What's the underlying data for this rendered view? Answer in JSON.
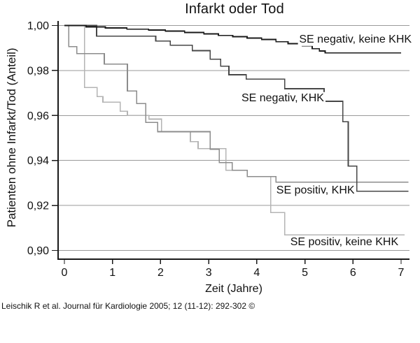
{
  "figure": {
    "title": "Infarkt oder Tod",
    "y_axis": {
      "label": "Patienten ohne Infarkt/Tod (Anteil)"
    },
    "x_axis": {
      "label": "Zeit (Jahre)"
    },
    "citation": "Leischik R et al. Journal für Kardiologie 2005; 12 (11-12): 292-302 ©"
  },
  "colors": {
    "axis": "#1a1a1a",
    "grid": "#9a9a9a",
    "background": "#ffffff"
  },
  "chart_data": {
    "type": "line",
    "subtype": "kaplan-meier-step-curves",
    "title": "Infarkt oder Tod",
    "xlabel": "Zeit (Jahre)",
    "ylabel": "Patienten ohne Infarkt/Tod (Anteil)",
    "xlim": [
      0,
      7.17
    ],
    "ylim": [
      0.9,
      1.002
    ],
    "grid": "horizontal-only",
    "legend_position": "inline-labels-on-plot",
    "x_ticks": [
      0,
      1,
      2,
      3,
      4,
      5,
      6,
      7
    ],
    "y_ticks": [
      {
        "label": "1,00",
        "value": 1.0
      },
      {
        "label": "0,98",
        "value": 0.98
      },
      {
        "label": "0,96",
        "value": 0.96
      },
      {
        "label": "0,94",
        "value": 0.94
      },
      {
        "label": "0,92",
        "value": 0.92
      },
      {
        "label": "0,90",
        "value": 0.9
      }
    ],
    "series": [
      {
        "name": "SE negativ, keine KHK",
        "color": "#1a1a1a",
        "width": 1.8,
        "end_x": 7.0,
        "label_at": [
          6.05,
          0.9936
        ],
        "points": [
          [
            0,
            1.0
          ],
          [
            0.45,
            0.9994
          ],
          [
            0.85,
            0.9989
          ],
          [
            1.3,
            0.9984
          ],
          [
            1.75,
            0.998
          ],
          [
            2.1,
            0.9975
          ],
          [
            2.5,
            0.9969
          ],
          [
            2.9,
            0.9963
          ],
          [
            3.2,
            0.9956
          ],
          [
            3.5,
            0.995
          ],
          [
            3.8,
            0.9944
          ],
          [
            4.1,
            0.9938
          ],
          [
            4.4,
            0.9928
          ],
          [
            4.65,
            0.9919
          ],
          [
            4.95,
            0.9909
          ],
          [
            5.15,
            0.9897
          ],
          [
            5.3,
            0.9887
          ],
          [
            5.42,
            0.9878
          ]
        ]
      },
      {
        "name": "SE negativ, KHK",
        "color": "#474747",
        "width": 1.7,
        "end_x": 7.15,
        "label_at": [
          4.54,
          0.9675
        ],
        "points": [
          [
            0,
            1.0
          ],
          [
            0.67,
            0.9953
          ],
          [
            1.9,
            0.9931
          ],
          [
            2.2,
            0.9912
          ],
          [
            2.66,
            0.9888
          ],
          [
            3.03,
            0.985
          ],
          [
            3.25,
            0.9819
          ],
          [
            3.42,
            0.9781
          ],
          [
            3.78,
            0.9762
          ],
          [
            4.58,
            0.9719
          ],
          [
            5.4,
            0.9663
          ],
          [
            5.79,
            0.9572
          ],
          [
            5.9,
            0.9375
          ],
          [
            6.08,
            0.9263
          ]
        ]
      },
      {
        "name": "SE positiv, KHK",
        "color": "#8c8c8c",
        "width": 1.6,
        "end_x": 7.15,
        "label_at": [
          5.22,
          0.9266
        ],
        "points": [
          [
            0,
            1.0
          ],
          [
            0.09,
            0.9906
          ],
          [
            0.26,
            0.9875
          ],
          [
            0.83,
            0.9828
          ],
          [
            1.31,
            0.9709
          ],
          [
            1.5,
            0.9653
          ],
          [
            1.69,
            0.9569
          ],
          [
            1.94,
            0.9528
          ],
          [
            3.03,
            0.945
          ],
          [
            3.22,
            0.939
          ],
          [
            3.49,
            0.9356
          ],
          [
            3.8,
            0.9328
          ],
          [
            4.4,
            0.9303
          ]
        ]
      },
      {
        "name": "SE positiv, keine KHK",
        "color": "#b4b4b4",
        "width": 1.6,
        "end_x": 7.07,
        "label_at": [
          5.82,
          0.9036
        ],
        "points": [
          [
            0,
            1.0
          ],
          [
            0.42,
            0.9725
          ],
          [
            0.68,
            0.9684
          ],
          [
            0.8,
            0.9659
          ],
          [
            1.16,
            0.9619
          ],
          [
            1.31,
            0.96
          ],
          [
            1.76,
            0.9584
          ],
          [
            2.02,
            0.9528
          ],
          [
            2.62,
            0.9484
          ],
          [
            2.78,
            0.9453
          ],
          [
            3.36,
            0.9356
          ],
          [
            3.8,
            0.9328
          ],
          [
            4.29,
            0.9169
          ],
          [
            4.58,
            0.9069
          ]
        ]
      }
    ]
  }
}
